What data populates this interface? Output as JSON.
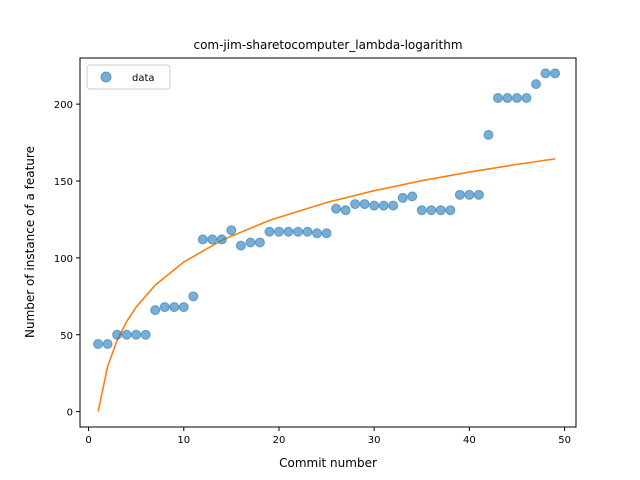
{
  "chart_data": {
    "type": "scatter",
    "title": "com-jim-sharetocomputer_lambda-logarithm",
    "xlabel": "Commit number",
    "ylabel": "Number of instance of a feature",
    "xlim": [
      -0.9,
      51.2
    ],
    "ylim": [
      -10,
      230
    ],
    "xticks": [
      0,
      10,
      20,
      30,
      40,
      50
    ],
    "yticks": [
      0,
      50,
      100,
      150,
      200
    ],
    "grid": false,
    "legend_position": "top-left",
    "series": [
      {
        "name": "data",
        "kind": "scatter",
        "color": "#1f77b4",
        "x": [
          1,
          2,
          3,
          4,
          5,
          6,
          7,
          8,
          9,
          10,
          11,
          12,
          13,
          14,
          15,
          16,
          17,
          18,
          19,
          20,
          21,
          22,
          23,
          24,
          25,
          26,
          27,
          28,
          29,
          30,
          31,
          32,
          33,
          34,
          35,
          36,
          37,
          38,
          39,
          40,
          41,
          42,
          43,
          44,
          45,
          46,
          47,
          48,
          49
        ],
        "y": [
          44,
          44,
          50,
          50,
          50,
          50,
          66,
          68,
          68,
          68,
          75,
          112,
          112,
          112,
          118,
          108,
          110,
          110,
          117,
          117,
          117,
          117,
          117,
          116,
          116,
          132,
          131,
          135,
          135,
          134,
          134,
          134,
          139,
          140,
          131,
          131,
          131,
          131,
          141,
          141,
          141,
          180,
          204,
          204,
          204,
          204,
          213,
          220,
          220
        ]
      },
      {
        "kind": "line",
        "color": "#ff7f0e",
        "fit": "logarithmic",
        "x_range": [
          1,
          49
        ],
        "points": [
          [
            1,
            0
          ],
          [
            2,
            29.3
          ],
          [
            3,
            46.4
          ],
          [
            4,
            58.6
          ],
          [
            5,
            68.0
          ],
          [
            7,
            82.3
          ],
          [
            10,
            97.3
          ],
          [
            14,
            111.5
          ],
          [
            19,
            124.4
          ],
          [
            25,
            136.0
          ],
          [
            30,
            143.7
          ],
          [
            35,
            150.2
          ],
          [
            40,
            155.8
          ],
          [
            45,
            160.8
          ],
          [
            49,
            164.4
          ]
        ]
      }
    ]
  }
}
